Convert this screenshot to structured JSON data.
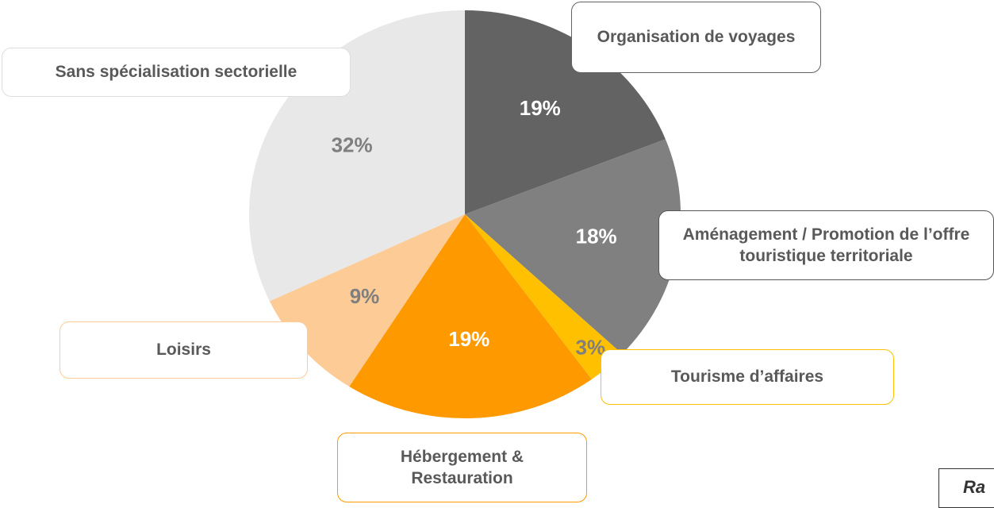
{
  "chart_data": {
    "type": "pie",
    "categories": [
      "Organisation de voyages",
      "Aménagement / Promotion de l’offre touristique territoriale",
      "Tourisme d’affaires",
      "Hébergement & Restauration",
      "Loisirs",
      "Sans spécialisation sectorielle"
    ],
    "values": [
      19,
      18,
      3,
      19,
      9,
      32
    ],
    "value_labels": [
      "19%",
      "18%",
      "3%",
      "19%",
      "9%",
      "32%"
    ],
    "colors": [
      "#636363",
      "#808080",
      "#ffc000",
      "#ff9900",
      "#fdcb95",
      "#e8e8e8"
    ],
    "note": "Ra"
  }
}
